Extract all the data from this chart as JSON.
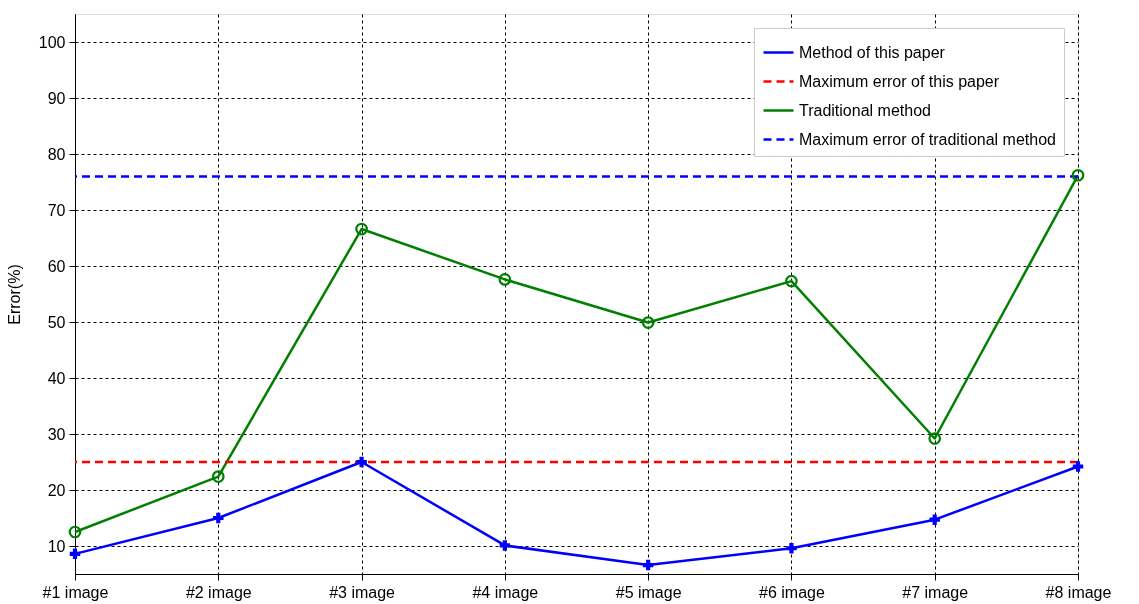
{
  "chart_data": {
    "type": "line",
    "ylabel": "Error(%)",
    "categories": [
      "#1 image",
      "#2 image",
      "#3 image",
      "#4 image",
      "#5 image",
      "#6 image",
      "#7 image",
      "#8 image"
    ],
    "series": [
      {
        "name": "Method of this paper",
        "color": "#0000ff",
        "marker": "cross",
        "values": [
          8.6,
          15,
          25,
          10.1,
          6.6,
          9.6,
          14.7,
          24.2
        ]
      },
      {
        "name": "Traditional method",
        "color": "#008000",
        "marker": "circle",
        "values": [
          12.5,
          22.4,
          66.6,
          57.6,
          49.9,
          57.3,
          29.2,
          76.2
        ]
      }
    ],
    "ref_lines": [
      {
        "axis": "y",
        "value": 25,
        "label": "Maximum error of this paper",
        "color": "#ff0000",
        "line_style": "dashed"
      },
      {
        "axis": "y",
        "value": 76,
        "label": "Maximum error of traditional method",
        "color": "#0000ff",
        "line_style": "dashed"
      }
    ],
    "ylim": [
      5,
      105
    ],
    "yticks": [
      10,
      20,
      30,
      40,
      50,
      60,
      70,
      80,
      90,
      100
    ],
    "grid": true,
    "legend": "top right",
    "line_style": "solid"
  }
}
